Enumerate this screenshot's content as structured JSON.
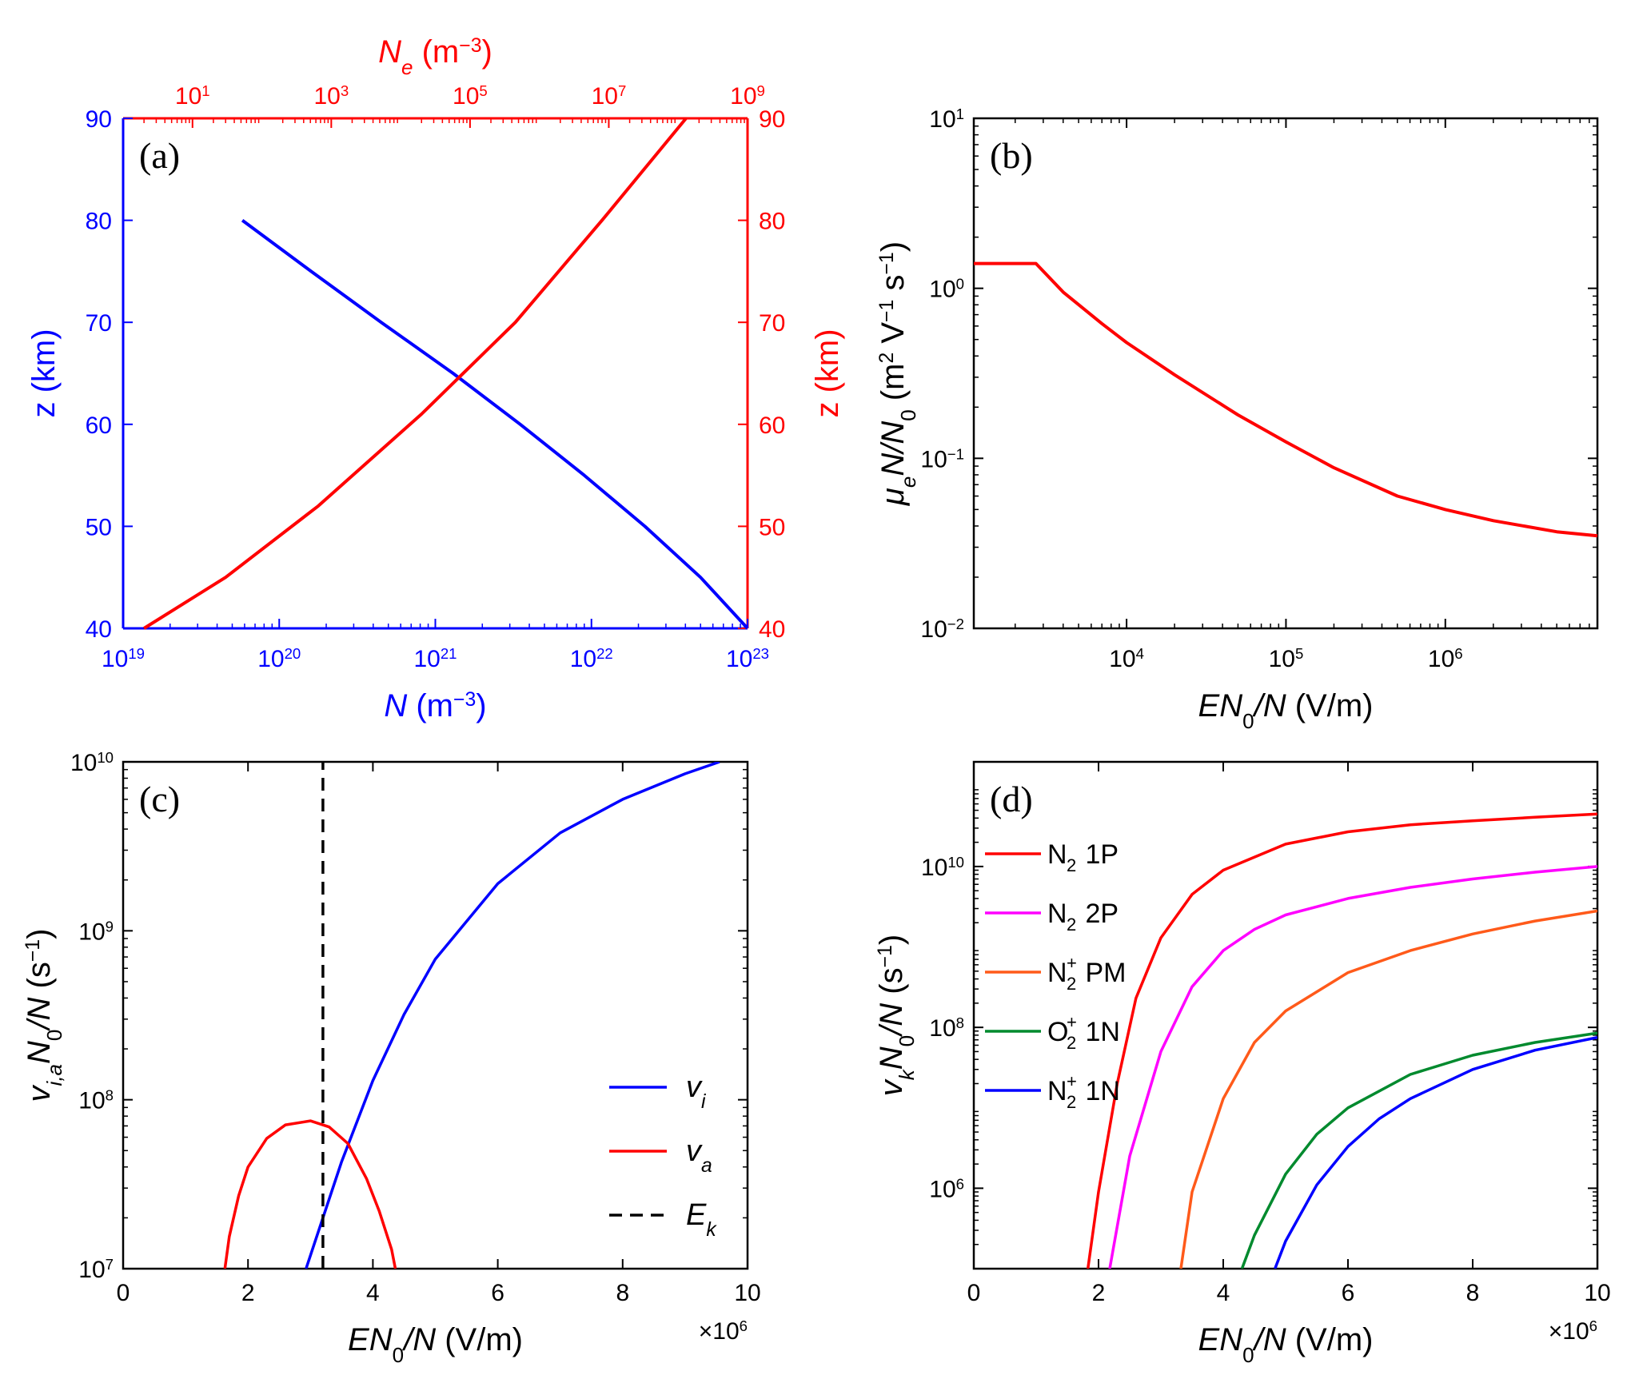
{
  "colors": {
    "red": "#ff0000",
    "blue": "#0000ff",
    "magenta": "#ff00ff",
    "orange": "#ff5a1a",
    "green": "#008a2e",
    "black": "#000000"
  },
  "chart_data": [
    {
      "id": "a",
      "panel_label": "(a)",
      "type": "line",
      "xscale": "log",
      "yscale": "linear",
      "bottom_axis": {
        "label_italic": "N",
        "label_rest": " (m",
        "label_sup": "−3",
        "label_close": ")",
        "range": [
          1e+19,
          1e+23
        ],
        "ticks": [
          {
            "value": 1e+19,
            "base": "10",
            "exp": "19"
          },
          {
            "value": 1e+20,
            "base": "10",
            "exp": "20"
          },
          {
            "value": 1e+21,
            "base": "10",
            "exp": "21"
          },
          {
            "value": 1e+22,
            "base": "10",
            "exp": "22"
          },
          {
            "value": 1e+23,
            "base": "10",
            "exp": "23"
          }
        ]
      },
      "top_axis": {
        "label_italic": "N",
        "label_sub": "e",
        "label_rest": " (m",
        "label_sup": "−3",
        "label_close": ")",
        "range": [
          1,
          1000000000.0
        ],
        "ticks": [
          {
            "value": 10,
            "base": "10",
            "exp": "1"
          },
          {
            "value": 1000,
            "base": "10",
            "exp": "3"
          },
          {
            "value": 100000,
            "base": "10",
            "exp": "5"
          },
          {
            "value": 10000000,
            "base": "10",
            "exp": "7"
          },
          {
            "value": 1000000000,
            "base": "10",
            "exp": "9"
          }
        ]
      },
      "left_axis": {
        "label": "z (km)",
        "range": [
          40,
          90
        ],
        "ticks": [
          "40",
          "50",
          "60",
          "70",
          "80",
          "90"
        ]
      },
      "right_axis": {
        "label": "z (km)",
        "range": [
          40,
          90
        ],
        "ticks": [
          "40",
          "50",
          "60",
          "70",
          "80",
          "90"
        ]
      },
      "series": [
        {
          "name": "N",
          "axis": "bottom",
          "color": "blue",
          "x": [
            1e+23,
            5e+22,
            2.2e+22,
            9e+21,
            3.5e+21,
            1.3e+21,
            4.5e+20,
            1.6e+20,
            5.8e+19
          ],
          "y": [
            40,
            45,
            50,
            55,
            60,
            65,
            70,
            75,
            80
          ]
        },
        {
          "name": "N_e",
          "axis": "top",
          "color": "red",
          "x": [
            2.0,
            30,
            650,
            20000,
            450000,
            8000000,
            130000000
          ],
          "y": [
            40,
            45,
            52,
            61,
            70,
            80,
            90
          ]
        }
      ]
    },
    {
      "id": "b",
      "panel_label": "(b)",
      "type": "line",
      "xscale": "log",
      "yscale": "log",
      "xrange": [
        1100,
        9000000
      ],
      "yrange": [
        0.01,
        10
      ],
      "x_label_parts": [
        "E",
        "N",
        "0",
        "/",
        "N",
        " (V/m)"
      ],
      "y_label": {
        "mu": "μ",
        "sub": "e",
        "rest": "N/N",
        "zero": "0",
        "units": " (m",
        "sup1": "2",
        "v": " V",
        "sup2": "−1",
        "s": " s",
        "sup3": "−1",
        "close": ")"
      },
      "x_ticks": [
        {
          "value": 10000,
          "base": "10",
          "exp": "4"
        },
        {
          "value": 100000,
          "base": "10",
          "exp": "5"
        },
        {
          "value": 1000000,
          "base": "10",
          "exp": "6"
        }
      ],
      "y_ticks": [
        {
          "value": 0.01,
          "base": "10",
          "exp": "−2"
        },
        {
          "value": 0.1,
          "base": "10",
          "exp": "−1"
        },
        {
          "value": 1,
          "base": "10",
          "exp": "0"
        },
        {
          "value": 10,
          "base": "10",
          "exp": "1"
        }
      ],
      "series": [
        {
          "name": "mu_e N/N0",
          "color": "red",
          "x": [
            1100,
            2700,
            4000,
            7000,
            10000,
            20000,
            50000,
            100000,
            200000,
            500000,
            1000000,
            2000000,
            5000000,
            9000000
          ],
          "y": [
            1.4,
            1.4,
            0.95,
            0.62,
            0.48,
            0.31,
            0.18,
            0.125,
            0.088,
            0.06,
            0.05,
            0.043,
            0.037,
            0.035
          ]
        }
      ]
    },
    {
      "id": "c",
      "panel_label": "(c)",
      "type": "line",
      "xscale": "linear",
      "yscale": "log",
      "xrange": [
        0,
        10
      ],
      "yrange": [
        10000000.0,
        10000000000.0
      ],
      "x_multiplier": {
        "base": "×10",
        "exp": "6"
      },
      "x_label_parts": [
        "E",
        "N",
        "0",
        "/",
        "N",
        " (V/m)"
      ],
      "y_label": {
        "v": "v",
        "sub": "i,a",
        "rest": "N",
        "zero": "0",
        "slash": "/N",
        "units": " (s",
        "sup": "−1",
        "close": ")"
      },
      "x_ticks": [
        "0",
        "2",
        "4",
        "6",
        "8",
        "10"
      ],
      "y_ticks": [
        {
          "value": 10000000.0,
          "base": "10",
          "exp": "7"
        },
        {
          "value": 100000000.0,
          "base": "10",
          "exp": "8"
        },
        {
          "value": 1000000000.0,
          "base": "10",
          "exp": "9"
        },
        {
          "value": 10000000000.0,
          "base": "10",
          "exp": "10"
        }
      ],
      "series": [
        {
          "name": "v_i",
          "legend": {
            "main": "v",
            "sub": "i"
          },
          "color": "blue",
          "style": "solid",
          "x": [
            2.93,
            3.2,
            3.5,
            4.0,
            4.5,
            5.0,
            6.0,
            7.0,
            8.0,
            9.0,
            9.55
          ],
          "y": [
            10000000.0,
            20000000.0,
            43000000.0,
            130000000.0,
            320000000.0,
            680000000.0,
            1900000000.0,
            3800000000.0,
            6000000000.0,
            8500000000.0,
            10000000000.0
          ]
        },
        {
          "name": "v_a",
          "legend": {
            "main": "v",
            "sub": "a"
          },
          "color": "red",
          "style": "solid",
          "x": [
            1.63,
            1.7,
            1.85,
            2.0,
            2.3,
            2.6,
            3.0,
            3.3,
            3.6,
            3.9,
            4.1,
            4.3,
            4.36
          ],
          "y": [
            10000000.0,
            15500000.0,
            27000000.0,
            40000000.0,
            59000000.0,
            71000000.0,
            75000000.0,
            69000000.0,
            55000000.0,
            34000000.0,
            22000000.0,
            13000000.0,
            10000000.0
          ]
        },
        {
          "name": "E_k",
          "legend": {
            "main": "E",
            "sub": "k"
          },
          "color": "black",
          "style": "dashed",
          "x": [
            3.2,
            3.2
          ],
          "y": [
            10000000.0,
            10000000000.0
          ]
        }
      ]
    },
    {
      "id": "d",
      "panel_label": "(d)",
      "type": "line",
      "xscale": "linear",
      "yscale": "log",
      "xrange": [
        0,
        10
      ],
      "yrange": [
        100000,
        200000000000
      ],
      "x_multiplier": {
        "base": "×10",
        "exp": "6"
      },
      "x_label_parts": [
        "E",
        "N",
        "0",
        "/",
        "N",
        " (V/m)"
      ],
      "y_label": {
        "v": "v",
        "sub": "k",
        "rest": "N",
        "zero": "0",
        "slash": "/N",
        "units": " (s",
        "sup": "−1",
        "close": ")"
      },
      "x_ticks": [
        "0",
        "2",
        "4",
        "6",
        "8",
        "10"
      ],
      "y_ticks": [
        {
          "value": 1000000,
          "base": "10",
          "exp": "6"
        },
        {
          "value": 100000000,
          "base": "10",
          "exp": "8"
        },
        {
          "value": 10000000000,
          "base": "10",
          "exp": "10"
        }
      ],
      "series": [
        {
          "name": "N2 1P",
          "legend": {
            "mol": "N",
            "sub": "2",
            "sup": "",
            "band": " 1P"
          },
          "color": "red",
          "x": [
            1.83,
            2.0,
            2.3,
            2.6,
            3.0,
            3.5,
            4.0,
            5.0,
            6.0,
            7.0,
            8.0,
            9.0,
            10.0
          ],
          "y": [
            100000,
            900000,
            20000000,
            230000000,
            1300000000,
            4500000000,
            9000000000,
            19000000000,
            27000000000,
            33000000000,
            37000000000,
            41000000000,
            45000000000
          ]
        },
        {
          "name": "N2 2P",
          "legend": {
            "mol": "N",
            "sub": "2",
            "sup": "",
            "band": " 2P"
          },
          "color": "magenta",
          "x": [
            2.18,
            2.5,
            3.0,
            3.5,
            4.0,
            4.5,
            5.0,
            6.0,
            7.0,
            8.0,
            9.0,
            10.0
          ],
          "y": [
            100000,
            2500000,
            50000000,
            320000000,
            900000000,
            1650000000,
            2500000000,
            4000000000,
            5500000000,
            7000000000,
            8500000000,
            10000000000
          ]
        },
        {
          "name": "N2+ PM",
          "legend": {
            "mol": "N",
            "sub": "2",
            "sup": "+",
            "band": " PM"
          },
          "color": "orange",
          "x": [
            3.32,
            3.5,
            4.0,
            4.5,
            5.0,
            6.0,
            7.0,
            8.0,
            9.0,
            10.0
          ],
          "y": [
            100000,
            900000,
            13000000,
            65000000,
            160000000,
            480000000,
            900000000,
            1450000000,
            2100000000,
            2800000000
          ]
        },
        {
          "name": "O2+ 1N",
          "legend": {
            "mol": "O",
            "sub": "2",
            "sup": "+",
            "band": " 1N"
          },
          "color": "green",
          "x": [
            4.3,
            4.5,
            5.0,
            5.5,
            6.0,
            7.0,
            8.0,
            9.0,
            10.0
          ],
          "y": [
            100000,
            260000,
            1500000,
            4700000,
            10000000,
            26000000,
            45000000,
            65000000,
            85000000
          ]
        },
        {
          "name": "N2+ 1N",
          "legend": {
            "mol": "N",
            "sub": "2",
            "sup": "+",
            "band": " 1N"
          },
          "color": "blue",
          "x": [
            4.83,
            5.0,
            5.5,
            6.0,
            6.5,
            7.0,
            8.0,
            9.0,
            10.0
          ],
          "y": [
            100000,
            220000,
            1100000,
            3300000,
            7300000,
            13000000,
            30000000,
            52000000,
            75000000
          ]
        }
      ]
    }
  ]
}
